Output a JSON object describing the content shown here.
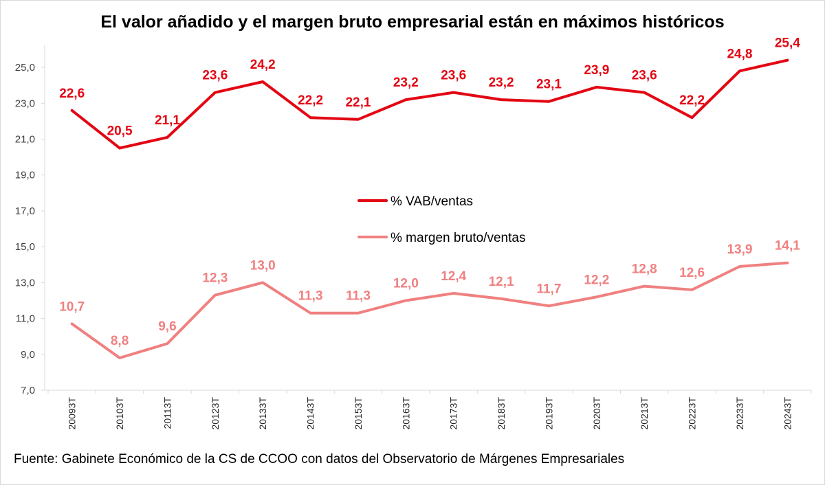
{
  "title": "El valor añadido y el margen bruto empresarial están en máximos históricos",
  "source": "Fuente: Gabinete Económico de la CS de CCOO con datos del Observatorio de Márgenes Empresariales",
  "chart_data": {
    "type": "line",
    "title": "El valor añadido y el margen bruto empresarial están en máximos históricos",
    "xlabel": "",
    "ylabel": "",
    "ylim": [
      7.0,
      26.0
    ],
    "yticks": [
      "7,0",
      "9,0",
      "11,0",
      "13,0",
      "15,0",
      "17,0",
      "19,0",
      "21,0",
      "23,0",
      "25,0"
    ],
    "ytick_values": [
      7,
      9,
      11,
      13,
      15,
      17,
      19,
      21,
      23,
      25
    ],
    "categories": [
      "20093T",
      "20103T",
      "20113T",
      "20123T",
      "20133T",
      "20143T",
      "20153T",
      "20163T",
      "20173T",
      "20183T",
      "20193T",
      "20203T",
      "20213T",
      "20223T",
      "20233T",
      "20243T"
    ],
    "grid": false,
    "legend_position": "center",
    "series": [
      {
        "name": "% VAB/ventas",
        "color": "#e30613",
        "values": [
          22.6,
          20.5,
          21.1,
          23.6,
          24.2,
          22.2,
          22.1,
          23.2,
          23.6,
          23.2,
          23.1,
          23.9,
          23.6,
          22.2,
          24.8,
          25.4
        ],
        "labels": [
          "22,6",
          "20,5",
          "21,1",
          "23,6",
          "24,2",
          "22,2",
          "22,1",
          "23,2",
          "23,6",
          "23,2",
          "23,1",
          "23,9",
          "23,6",
          "22,2",
          "24,8",
          "25,4"
        ]
      },
      {
        "name": "% margen bruto/ventas",
        "color": "#f08080",
        "values": [
          10.7,
          8.8,
          9.6,
          12.3,
          13.0,
          11.3,
          11.3,
          12.0,
          12.4,
          12.1,
          11.7,
          12.2,
          12.8,
          12.6,
          13.9,
          14.1
        ],
        "labels": [
          "10,7",
          "8,8",
          "9,6",
          "12,3",
          "13,0",
          "11,3",
          "11,3",
          "12,0",
          "12,4",
          "12,1",
          "11,7",
          "12,2",
          "12,8",
          "12,6",
          "13,9",
          "14,1"
        ]
      }
    ]
  }
}
